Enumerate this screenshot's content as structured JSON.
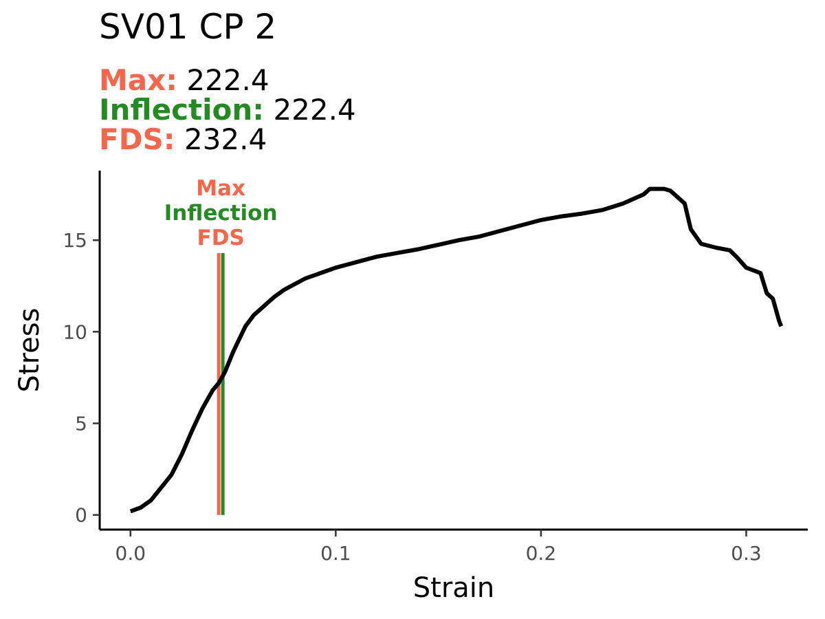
{
  "title": "SV01 CP 2",
  "subtitle": [
    {
      "label": "Max:",
      "value": "222.4",
      "color": "#f7664b"
    },
    {
      "label": "Inflection:",
      "value": "222.4",
      "color": "#238b22"
    },
    {
      "label": "FDS:",
      "value": "232.4",
      "color": "#f7664b"
    }
  ],
  "chart_data": {
    "type": "line",
    "title": "SV01 CP 2",
    "xlabel": "Strain",
    "ylabel": "Stress",
    "xlim": [
      -0.015,
      0.33
    ],
    "ylim": [
      -0.8,
      18.8
    ],
    "x_ticks": [
      0.0,
      0.1,
      0.2,
      0.3
    ],
    "x_tick_labels": [
      "0.0",
      "0.1",
      "0.2",
      "0.3"
    ],
    "y_ticks": [
      0,
      5,
      10,
      15
    ],
    "y_tick_labels": [
      "0",
      "5",
      "10",
      "15"
    ],
    "grid": false,
    "series": [
      {
        "color": "#000000",
        "x": [
          0.0,
          0.005,
          0.01,
          0.015,
          0.02,
          0.025,
          0.03,
          0.035,
          0.04,
          0.043,
          0.046,
          0.05,
          0.053,
          0.056,
          0.06,
          0.065,
          0.07,
          0.075,
          0.08,
          0.085,
          0.09,
          0.095,
          0.1,
          0.11,
          0.12,
          0.13,
          0.14,
          0.15,
          0.16,
          0.17,
          0.18,
          0.19,
          0.2,
          0.21,
          0.22,
          0.23,
          0.24,
          0.25,
          0.253,
          0.26,
          0.263,
          0.27,
          0.273,
          0.278,
          0.285,
          0.292,
          0.296,
          0.3,
          0.307,
          0.31,
          0.313,
          0.316,
          0.317
        ],
        "y": [
          0.2,
          0.4,
          0.8,
          1.5,
          2.2,
          3.3,
          4.6,
          5.8,
          6.8,
          7.2,
          7.8,
          8.9,
          9.6,
          10.3,
          10.9,
          11.4,
          11.9,
          12.3,
          12.6,
          12.9,
          13.1,
          13.3,
          13.5,
          13.8,
          14.1,
          14.3,
          14.5,
          14.75,
          15.0,
          15.2,
          15.5,
          15.8,
          16.1,
          16.3,
          16.45,
          16.65,
          17.0,
          17.5,
          17.8,
          17.8,
          17.7,
          17.0,
          15.6,
          14.8,
          14.6,
          14.45,
          14.0,
          13.5,
          13.2,
          12.1,
          11.8,
          10.6,
          10.3
        ]
      }
    ],
    "vlines": [
      {
        "x": 0.043,
        "color": "#f7664b"
      },
      {
        "x": 0.045,
        "color": "#238b22"
      }
    ],
    "annotations": [
      {
        "text": "Max",
        "color": "#f7664b"
      },
      {
        "text": "Inflection",
        "color": "#238b22"
      },
      {
        "text": "FDS",
        "color": "#f7664b"
      }
    ]
  }
}
